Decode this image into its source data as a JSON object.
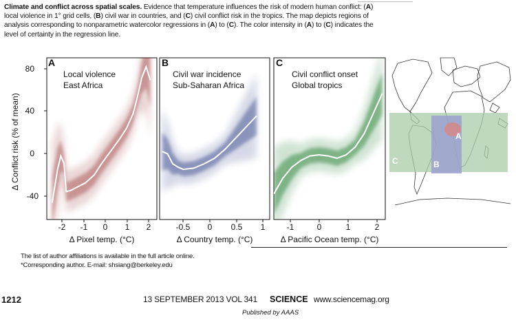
{
  "caption": {
    "title": "Climate and conflict across spatial scales.",
    "seg1": "Evidence that temperature influences the risk of modern human conflict: (",
    "A": "A",
    "seg2": ") local violence in 1° grid cells, (",
    "B": "B",
    "seg3": ") civil war in countries, and (",
    "C": "C",
    "seg4": ") civil conflict risk in the tropics. The map depicts regions of analysis corresponding to nonparametric watercolor regressions in (",
    "seg5": ") to (",
    "seg6": "). The color intensity in (",
    "seg7": ") to (",
    "seg8": ") indicates the level of certainty in the regression line."
  },
  "figure": {
    "ylabel": "Δ Conflict risk (% of mean)",
    "yticks": [
      "80",
      "40",
      "0",
      "-40"
    ],
    "panels": [
      {
        "letter": "A",
        "title1": "Local violence",
        "title2": "East Africa",
        "xlabel": "Δ Pixel temp. (°C)",
        "xticks": [
          "-2",
          "-1",
          "0",
          "1",
          "2"
        ],
        "color": "#8b1a1a"
      },
      {
        "letter": "B",
        "title1": "Civil war incidence",
        "title2": "Sub-Saharan Africa",
        "xlabel": "Δ Country temp. (°C)",
        "xticks": [
          "-0.5",
          "0",
          "0.5",
          "1"
        ],
        "color": "#1f2f7a"
      },
      {
        "letter": "C",
        "title1": "Civil conflict onset",
        "title2": "Global tropics",
        "xlabel": "Δ Pacific Ocean temp. (°C)",
        "xticks": [
          "-1",
          "0",
          "1",
          "2"
        ],
        "color": "#1e7a2a"
      }
    ],
    "map_labels": [
      "A",
      "B",
      "C"
    ],
    "map_colors": {
      "A": "#d28a8a",
      "B": "#9aa0cc",
      "C": "#a9cca9"
    }
  },
  "chart_data": [
    {
      "type": "line",
      "title": "Local violence / East Africa",
      "xlabel": "Δ Pixel temp. (°C)",
      "ylabel": "Δ Conflict risk (% of mean)",
      "xlim": [
        -2.8,
        2.3
      ],
      "ylim": [
        -55,
        90
      ],
      "x": [
        -2.55,
        -2.3,
        -2.15,
        -2.0,
        -1.9,
        -1.7,
        -1.4,
        -1.0,
        -0.6,
        -0.3,
        0,
        0.3,
        0.6,
        0.9,
        1.2,
        1.4,
        1.6,
        1.8,
        2.0
      ],
      "y": [
        -40,
        -10,
        2,
        -5,
        -30,
        -29,
        -26,
        -22,
        -15,
        -6,
        2,
        10,
        18,
        27,
        40,
        55,
        72,
        82,
        70
      ]
    },
    {
      "type": "line",
      "title": "Civil war incidence / Sub-Saharan Africa",
      "xlabel": "Δ Country temp. (°C)",
      "ylabel": "Δ Conflict risk (% of mean)",
      "xlim": [
        -0.95,
        1.15
      ],
      "ylim": [
        -55,
        90
      ],
      "x": [
        -0.9,
        -0.8,
        -0.7,
        -0.6,
        -0.5,
        -0.3,
        -0.1,
        0.1,
        0.3,
        0.5,
        0.7,
        0.9
      ],
      "y": [
        6,
        4,
        -5,
        -8,
        -10,
        -9,
        -5,
        0,
        8,
        18,
        28,
        38
      ]
    },
    {
      "type": "line",
      "title": "Civil conflict onset / Global tropics",
      "xlabel": "Δ Pacific Ocean temp. (°C)",
      "ylabel": "Δ Conflict risk (% of mean)",
      "xlim": [
        -1.5,
        2.2
      ],
      "ylim": [
        -55,
        90
      ],
      "x": [
        -1.5,
        -1.2,
        -0.9,
        -0.6,
        -0.3,
        0,
        0.3,
        0.6,
        0.9,
        1.2,
        1.5,
        1.8,
        2.1
      ],
      "y": [
        -32,
        -18,
        -8,
        -2,
        2,
        3,
        2,
        0,
        3,
        10,
        22,
        40,
        58
      ]
    }
  ],
  "footnotes": {
    "line1": "The list of author affiliations is available in the full article online.",
    "line2": "*Corresponding author. E-mail: shsiang@berkeley.edu"
  },
  "footer": {
    "page": "1212",
    "issue": "13 SEPTEMBER 2013   VOL 341",
    "journal": "SCIENCE",
    "site": "www.sciencemag.org",
    "publisher": "Published by AAAS"
  }
}
